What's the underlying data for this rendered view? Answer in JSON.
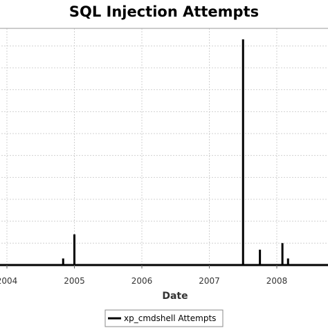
{
  "chart_data": {
    "type": "bar",
    "title": "SQL Injection Attempts",
    "xlabel": "Date",
    "ylabel": "",
    "x_ticks": [
      "2004",
      "2005",
      "2006",
      "2007",
      "2008"
    ],
    "series": [
      {
        "name": "xp_cmdshell Attempts",
        "color": "#000000",
        "points": [
          {
            "x": "2004-11",
            "value": 3
          },
          {
            "x": "2005-01",
            "value": 14
          },
          {
            "x": "2007-07",
            "value": 103
          },
          {
            "x": "2007-10",
            "value": 7
          },
          {
            "x": "2008-02",
            "value": 10
          },
          {
            "x": "2008-03",
            "value": 3
          }
        ]
      }
    ],
    "ylim": [
      0,
      108
    ],
    "grid": true,
    "legend_position": "bottom"
  }
}
